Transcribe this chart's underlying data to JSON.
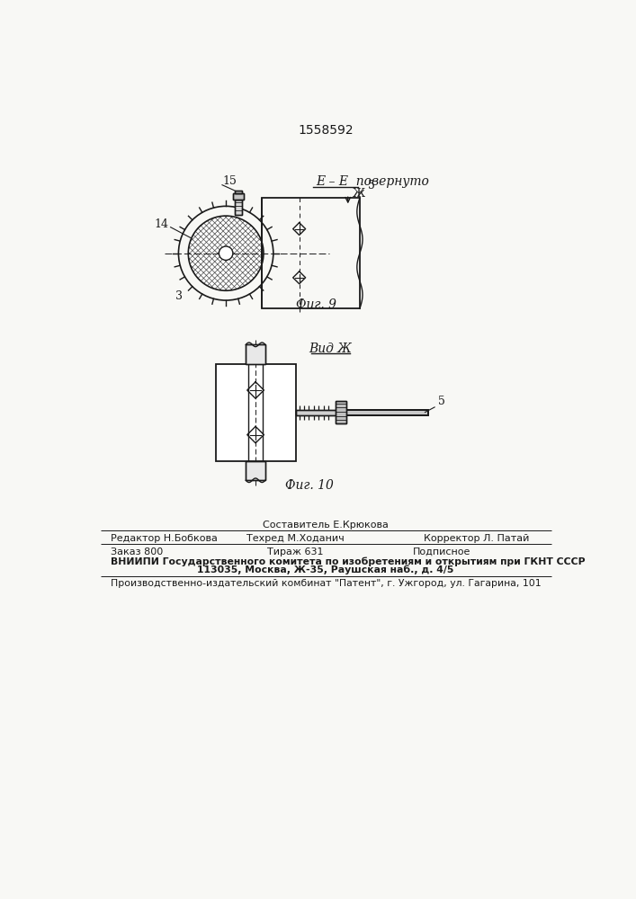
{
  "patent_number": "1558592",
  "fig9_label": "Фиг. 9",
  "fig10_label": "Фиг. 10",
  "fig9_title": "E – E  повернуто",
  "fig10_title": "Вид Ж",
  "label_Zh": "Ж",
  "label_5_fig9": "5",
  "label_5_fig10": "5",
  "label_14": "14",
  "label_15": "15",
  "label_3": "3",
  "line_color": "#1a1a1a",
  "bg_color": "#f8f8f5",
  "footer_line1_center": "Составитель Е.Крюкова",
  "footer_line2_left": "Редактор Н.Бобкова",
  "footer_line2_center": "Техред М.Ходанич",
  "footer_line2_right": "Корректор Л. Патай",
  "footer_line3_left": "Заказ 800",
  "footer_line3_center": "Тираж 631",
  "footer_line3_right": "Подписное",
  "footer_line4": "ВНИИПИ Государственного комитета по изобретениям и открытиям при ГКНТ СССР",
  "footer_line5": "113035, Москва, Ж-35, Раушская наб., д. 4/5",
  "footer_line6": "Производственно-издательский комбинат \"Патент\", г. Ужгород, ул. Гагарина, 101"
}
